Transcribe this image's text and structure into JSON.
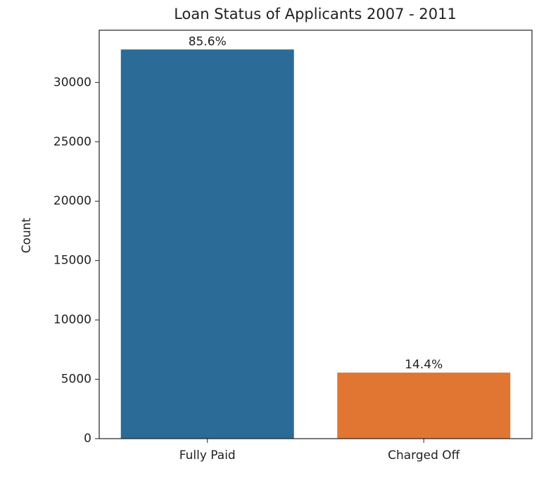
{
  "chart_data": {
    "type": "bar",
    "title": "Loan Status of Applicants 2007 - 2011",
    "ylabel": "Count",
    "categories": [
      "Fully Paid",
      "Charged Off"
    ],
    "values": [
      32780,
      5560
    ],
    "colors": [
      "#2a6b98",
      "#e07632"
    ],
    "annotations": [
      "85.6%",
      "14.4%"
    ],
    "ylim": [
      0,
      34400
    ],
    "yticks": [
      0,
      5000,
      10000,
      15000,
      20000,
      25000,
      30000
    ],
    "grid": false
  }
}
